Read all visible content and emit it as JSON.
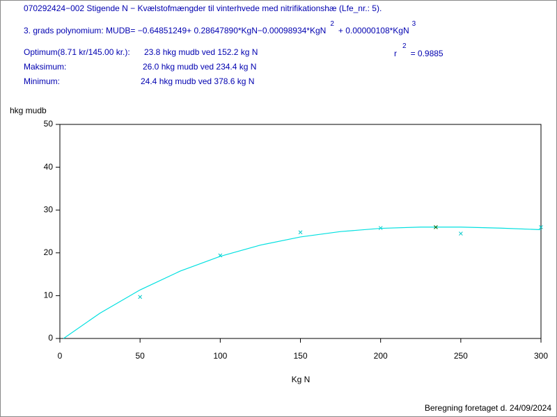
{
  "header": {
    "title": "070292424−002 Stigende N − Kvælstofmængder til vinterhvede med nitrifikationshæ (Lfe_nr.: 5).",
    "polynomial": {
      "text": "3. grads polynomium: MUDB= −0.64851249+ 0.28647890*KgN−0.00098934*KgN",
      "exp2": "2",
      "text2": "+ 0.00000108*KgN",
      "exp3": "3"
    },
    "optimum": {
      "label": "Optimum(8.71 kr/145.00 kr.):",
      "value": "23.8 hkg mudb ved 152.2 kg N"
    },
    "r2": {
      "label": "r",
      "exp": "2",
      "value": "= 0.9885"
    },
    "maximum": {
      "label": "Maksimum:",
      "value": "26.0 hkg mudb ved 234.4 kg N"
    },
    "minimum": {
      "label": "Minimum:",
      "value": "24.4 hkg mudb ved 378.6 kg N"
    }
  },
  "chart_data": {
    "type": "scatter",
    "ylabel": "hkg mudb",
    "xlabel": "Kg N",
    "xlim": [
      0,
      300
    ],
    "xticks": [
      0,
      50,
      100,
      150,
      200,
      250,
      300
    ],
    "ylim": [
      0,
      50
    ],
    "yticks": [
      0,
      10,
      20,
      30,
      40,
      50
    ],
    "series": [
      {
        "mode": "markers",
        "color": "#00c8c8",
        "x": [
          50,
          100,
          150,
          200,
          250,
          300
        ],
        "values": [
          9.7,
          19.4,
          24.8,
          25.8,
          24.5,
          26.0
        ]
      },
      {
        "mode": "line",
        "color": "#00e0e0",
        "x": [
          2.3,
          25,
          50,
          75,
          100,
          125,
          150,
          175,
          200,
          225,
          250,
          275,
          300
        ],
        "values": [
          0,
          5.91,
          11.34,
          15.73,
          19.19,
          21.81,
          23.71,
          24.97,
          25.72,
          26.02,
          26.02,
          25.77,
          25.41
        ]
      },
      {
        "mode": "markers",
        "color": "#006400",
        "x": [
          234.4
        ],
        "values": [
          26.0
        ]
      }
    ]
  },
  "footer": "Beregning foretaget d. 24/09/2024"
}
